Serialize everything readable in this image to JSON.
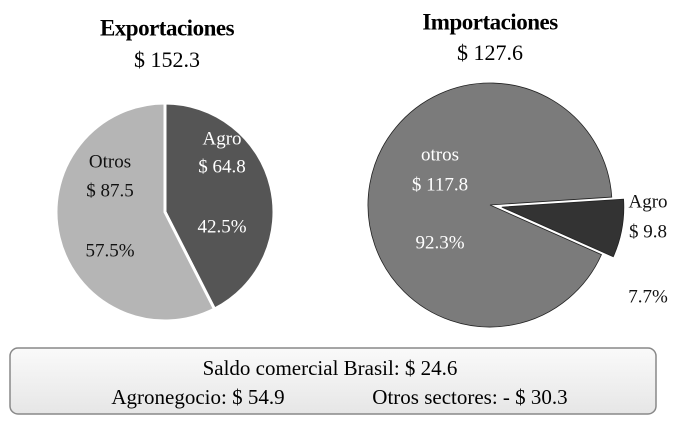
{
  "chart_data": [
    {
      "type": "pie",
      "title": "Exportaciones",
      "subtitle": "$ 152.3",
      "categories": [
        "Agro",
        "Otros"
      ],
      "values": [
        42.5,
        57.5
      ],
      "value_labels": [
        "42.5%",
        "57.5%"
      ],
      "amount_labels": [
        "$ 64.8",
        "$ 87.5"
      ],
      "colors": [
        "#555555",
        "#b5b5b5"
      ],
      "startangle": 0,
      "explode": [
        false,
        false
      ]
    },
    {
      "type": "pie",
      "title": "Importaciones",
      "subtitle": "$ 127.6",
      "categories": [
        "otros",
        "Agro"
      ],
      "values": [
        92.3,
        7.7
      ],
      "value_labels": [
        "92.3%",
        "7.7%"
      ],
      "amount_labels": [
        "$ 117.8",
        "$ 9.8"
      ],
      "colors": [
        "#7b7b7b",
        "#333333"
      ],
      "startangle": 114,
      "explode": [
        false,
        true
      ]
    }
  ],
  "summary": {
    "title": "Saldo comercial Brasil: $ 24.6",
    "agro": "Agronegocio:  $ 54.9",
    "otros": "Otros sectores: - $ 30.3"
  }
}
